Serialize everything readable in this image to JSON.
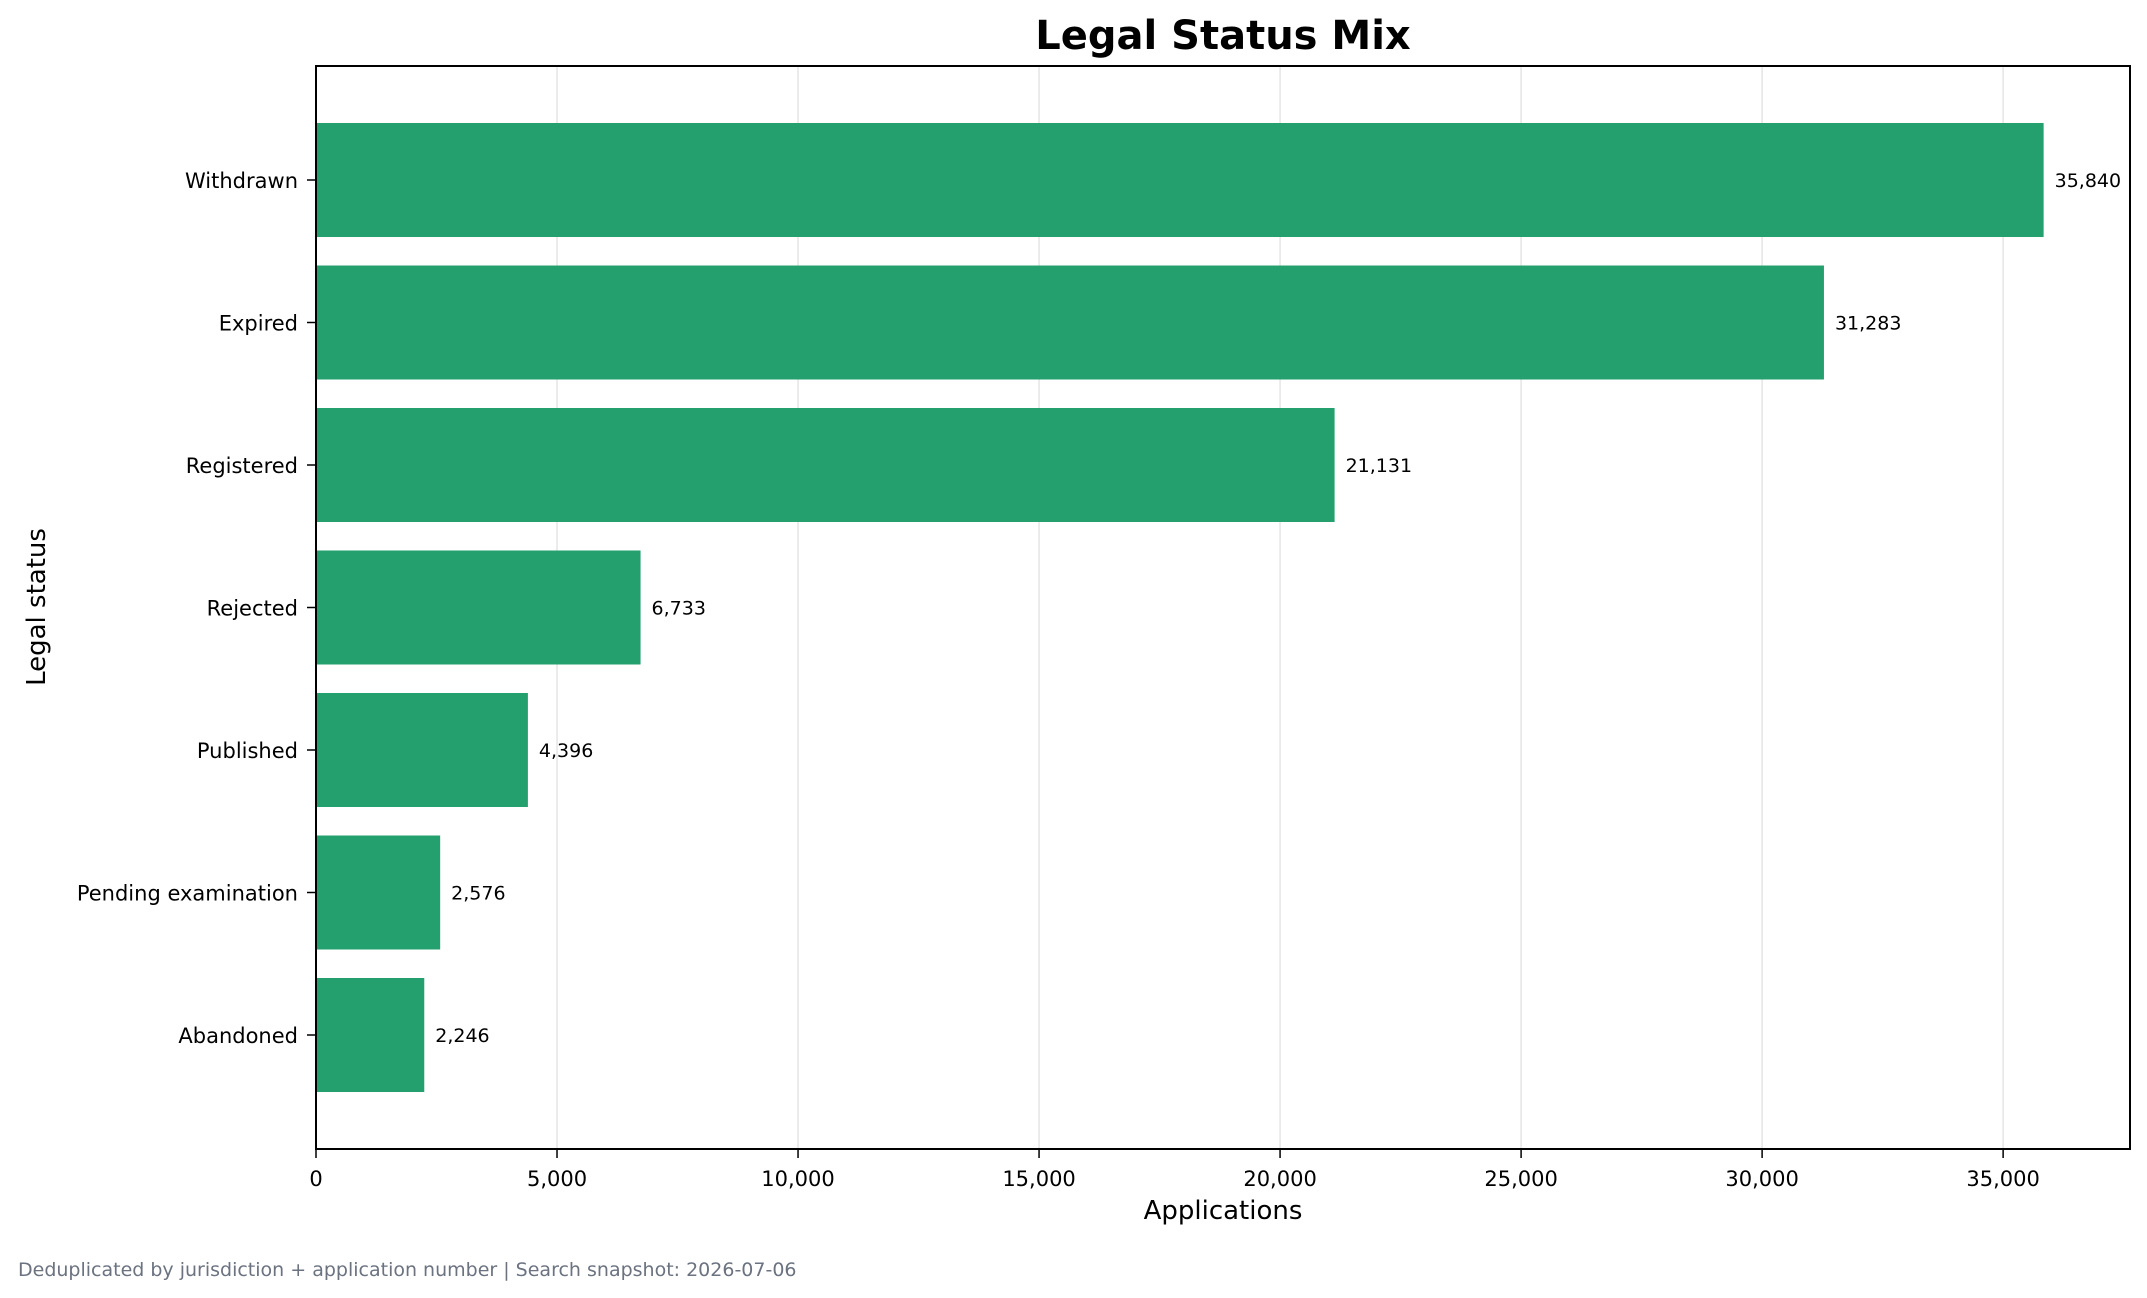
{
  "chart_data": {
    "type": "bar",
    "orientation": "horizontal",
    "title": "Legal Status Mix",
    "xlabel": "Applications",
    "ylabel": "Legal status",
    "categories": [
      "Withdrawn",
      "Expired",
      "Registered",
      "Rejected",
      "Published",
      "Pending examination",
      "Abandoned"
    ],
    "values": [
      35840,
      31283,
      21131,
      6733,
      4396,
      2576,
      2246
    ],
    "value_labels": [
      "35,840",
      "31,283",
      "21,131",
      "6,733",
      "4,396",
      "2,576",
      "2,246"
    ],
    "xlim": [
      0,
      37632
    ],
    "xticks": [
      0,
      5000,
      10000,
      15000,
      20000,
      25000,
      30000,
      35000
    ],
    "xtick_labels": [
      "0",
      "5,000",
      "10,000",
      "15,000",
      "20,000",
      "25,000",
      "30,000",
      "35,000"
    ],
    "grid": "vertical",
    "bar_color": "#23a06e",
    "grid_color": "#e5e5e5"
  },
  "footnote": "Deduplicated by jurisdiction + application number | Search snapshot: 2026-07-06"
}
